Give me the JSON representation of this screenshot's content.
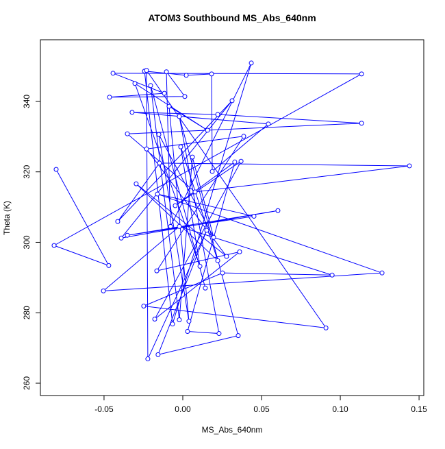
{
  "chart_data": {
    "type": "line",
    "title": "ATOM3 Southbound MS_Abs_640nm",
    "x_label": "MS_Abs_640nm",
    "y_label": "Theta (K)",
    "series": [
      {
        "name": "MS_Abs_640nm",
        "color": "#0000ff",
        "x": [
          -0.0804,
          -0.047,
          -0.0817,
          0.1135,
          -0.0443,
          -0.0117,
          -0.0465,
          0.0013,
          -0.0104,
          -0.0078,
          0.0435,
          -0.0065,
          -0.0243,
          0.0022,
          0.0183,
          0.0187,
          0.0543,
          -0.0322,
          0.0222,
          0.1135,
          -0.0352,
          0.0078,
          0.1439,
          -0.0148,
          -0.0413,
          0.0313,
          -0.0391,
          0.0604,
          -0.0352,
          0.0452,
          -0.0161,
          0.1265,
          -0.0504,
          -0.0022,
          0.0948,
          0.0252,
          -0.0248,
          0.0909,
          -0.023,
          -0.0222,
          0.0152,
          -0.0157,
          0.0352,
          -0.0022,
          0.023,
          0.003,
          0.033,
          -0.0048,
          0.037,
          -0.0178,
          0.0361,
          -0.0165,
          0.0387,
          -0.023,
          0.0278,
          -0.0296,
          0.0222,
          -0.0013,
          0.0109,
          -0.0304,
          0.0157,
          -0.0087,
          0.0039,
          -0.0152,
          0.0196,
          0.0061,
          -0.0022,
          -0.0204,
          0.0143
        ],
        "values": [
          320.7,
          293.4,
          299.1,
          347.8,
          348.0,
          342.3,
          341.2,
          341.4,
          348.4,
          304.5,
          350.9,
          276.8,
          348.6,
          347.4,
          347.8,
          320.1,
          333.6,
          336.9,
          336.3,
          333.8,
          330.8,
          314.3,
          321.7,
          322.5,
          305.9,
          340.2,
          301.2,
          309.0,
          302.0,
          307.4,
          313.7,
          291.3,
          286.2,
          304.5,
          290.7,
          291.3,
          281.9,
          275.7,
          348.8,
          266.9,
          303.4,
          268.1,
          273.5,
          335.7,
          274.1,
          274.7,
          322.8,
          310.4,
          323.0,
          278.2,
          297.3,
          291.9,
          330.1,
          326.5,
          296.0,
          316.6,
          294.8,
          327.1,
          293.2,
          345.1,
          331.8,
          338.6,
          277.6,
          330.6,
          301.4,
          324.2,
          278.0,
          344.5,
          287.0
        ]
      }
    ],
    "xlim": [
      -0.0904,
      0.153
    ],
    "ylim": [
      256.5,
      357.5
    ],
    "xticks": [
      -0.05,
      {
        "value": 0,
        "label": "0.00"
      },
      0.05,
      {
        "value": 0.1,
        "label": "0.10"
      },
      0.15
    ],
    "yticks": [
      260,
      280,
      300,
      320,
      340
    ]
  }
}
